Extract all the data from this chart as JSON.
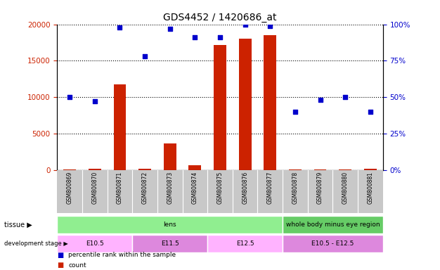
{
  "title": "GDS4452 / 1420686_at",
  "samples": [
    "GSM800869",
    "GSM800870",
    "GSM800871",
    "GSM800872",
    "GSM800873",
    "GSM800874",
    "GSM800875",
    "GSM800876",
    "GSM800877",
    "GSM800878",
    "GSM800879",
    "GSM800880",
    "GSM800881"
  ],
  "counts": [
    100,
    150,
    11800,
    200,
    3700,
    700,
    17200,
    18000,
    18500,
    100,
    100,
    100,
    150
  ],
  "percentiles": [
    50,
    47,
    98,
    78,
    97,
    91,
    91,
    100,
    99,
    40,
    48,
    50,
    40
  ],
  "ylim_left": [
    0,
    20000
  ],
  "ylim_right": [
    0,
    100
  ],
  "yticks_left": [
    0,
    5000,
    10000,
    15000,
    20000
  ],
  "yticks_right": [
    0,
    25,
    50,
    75,
    100
  ],
  "tissue_groups": [
    {
      "label": "lens",
      "start": 0,
      "end": 9,
      "color": "#90EE90"
    },
    {
      "label": "whole body minus eye region",
      "start": 9,
      "end": 13,
      "color": "#66CC66"
    }
  ],
  "dev_groups": [
    {
      "label": "E10.5",
      "start": 0,
      "end": 3,
      "color": "#FFB3FF"
    },
    {
      "label": "E11.5",
      "start": 3,
      "end": 6,
      "color": "#DD88DD"
    },
    {
      "label": "E12.5",
      "start": 6,
      "end": 9,
      "color": "#FFB3FF"
    },
    {
      "label": "E10.5 - E12.5",
      "start": 9,
      "end": 13,
      "color": "#DD88DD"
    }
  ],
  "bar_color": "#CC2200",
  "dot_color": "#0000CC",
  "grid_color": "#000000",
  "tick_color_left": "#CC2200",
  "tick_color_right": "#0000CC",
  "bar_width": 0.5,
  "label_bg_color": "#C8C8C8"
}
